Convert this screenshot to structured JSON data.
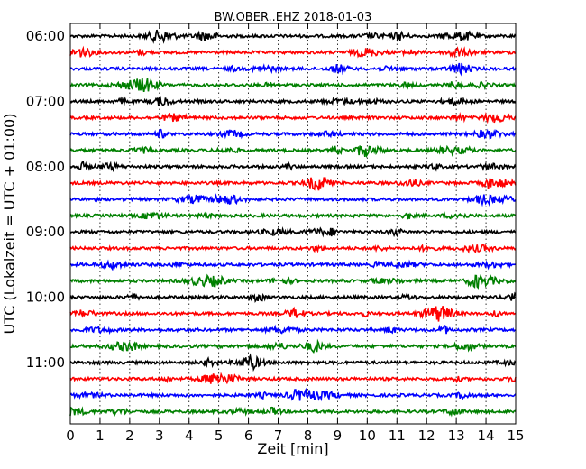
{
  "chart_data": {
    "type": "line",
    "title": "BW.OBER..EHZ 2018-01-03",
    "xlabel": "Zeit  [min]",
    "ylabel": "UTC (Lokalzeit = UTC + 01:00)",
    "x_ticks": [
      "0",
      "1",
      "2",
      "3",
      "4",
      "5",
      "6",
      "7",
      "8",
      "9",
      "10",
      "11",
      "12",
      "13",
      "14",
      "15"
    ],
    "xlim": [
      0,
      15
    ],
    "y_ticks": [
      "06:00",
      "07:00",
      "08:00",
      "09:00",
      "10:00",
      "11:00"
    ],
    "row_start_utc": [
      "06:00",
      "06:15",
      "06:30",
      "06:45",
      "07:00",
      "07:15",
      "07:30",
      "07:45",
      "08:00",
      "08:15",
      "08:30",
      "08:45",
      "09:00",
      "09:15",
      "09:30",
      "09:45",
      "10:00",
      "10:15",
      "10:30",
      "10:45",
      "11:00",
      "11:15",
      "11:30",
      "11:45"
    ],
    "colors": [
      "#000000",
      "#ff0000",
      "#0000ff",
      "#008000"
    ],
    "grid": "vertical dotted at each minute",
    "trace_note": "Seismogram traces, one row per 15 minutes; values are illustrative noise amplitudes"
  }
}
